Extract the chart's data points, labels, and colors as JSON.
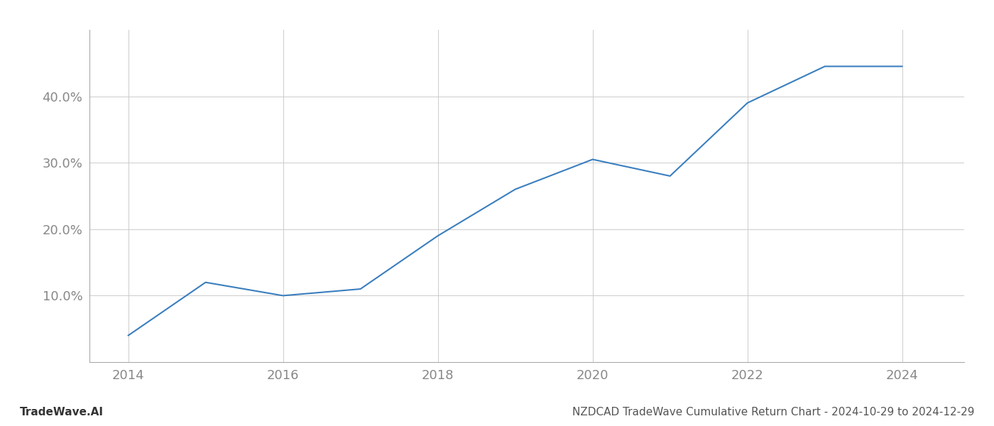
{
  "x_values": [
    2014,
    2015,
    2016,
    2017,
    2018,
    2019,
    2020,
    2021,
    2022,
    2023,
    2024
  ],
  "y_values": [
    4.0,
    12.0,
    10.0,
    11.0,
    19.0,
    26.0,
    30.5,
    28.0,
    39.0,
    44.5,
    44.5
  ],
  "line_color": "#3a7ebf",
  "line_width": 1.5,
  "background_color": "#ffffff",
  "grid_color": "#cccccc",
  "xlim": [
    2013.5,
    2024.8
  ],
  "ylim": [
    0,
    50
  ],
  "yticks": [
    10.0,
    20.0,
    30.0,
    40.0
  ],
  "ytick_labels": [
    "10.0%",
    "20.0%",
    "30.0%",
    "40.0%"
  ],
  "xticks": [
    2014,
    2016,
    2018,
    2020,
    2022,
    2024
  ],
  "xtick_labels": [
    "2014",
    "2016",
    "2018",
    "2020",
    "2022",
    "2024"
  ],
  "footer_left": "TradeWave.AI",
  "footer_right": "NZDCAD TradeWave Cumulative Return Chart - 2024-10-29 to 2024-12-29",
  "tick_fontsize": 13,
  "footer_fontsize": 11
}
